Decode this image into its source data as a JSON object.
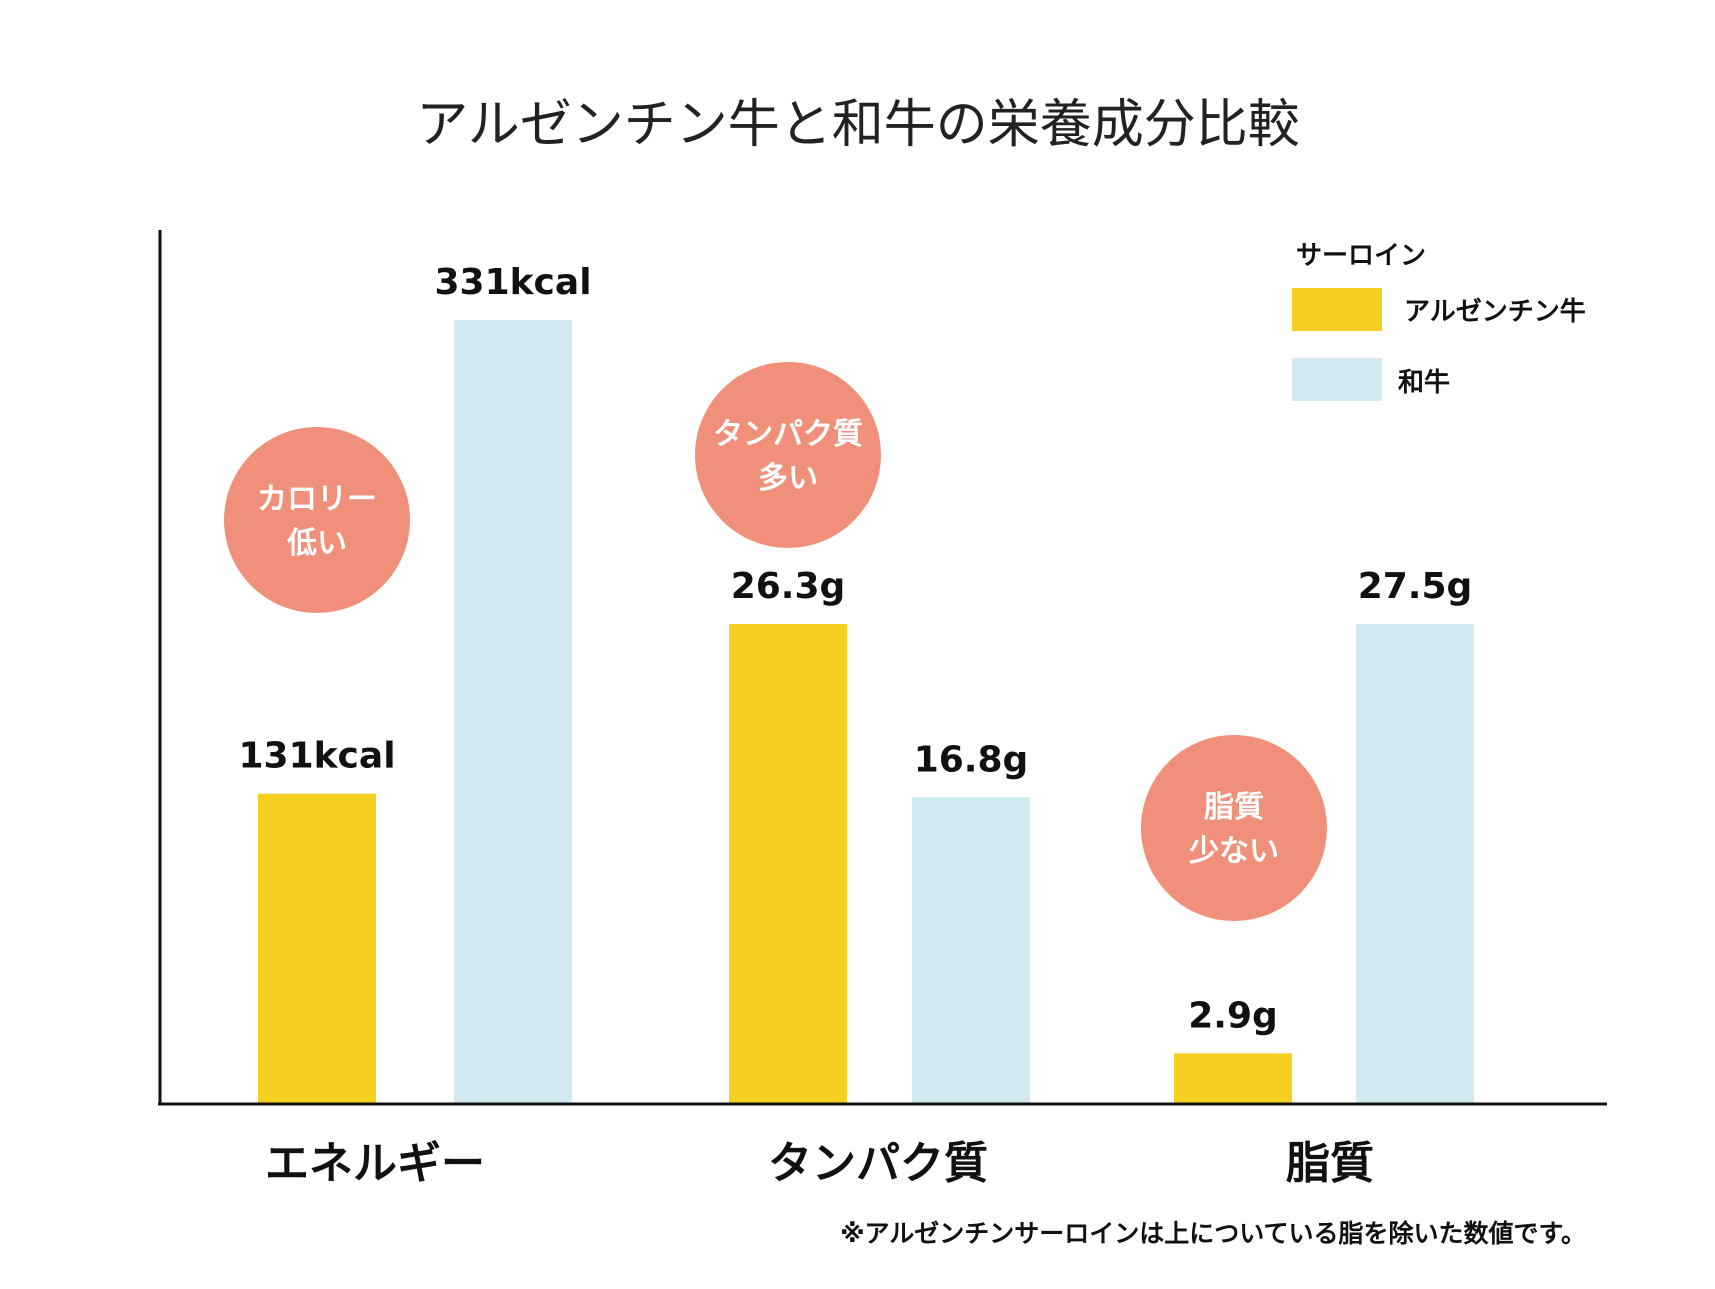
{
  "chart_data": {
    "type": "bar",
    "title": "アルゼンチン牛と和牛の栄養成分比較",
    "categories": [
      "エネルギー",
      "タンパク質",
      "脂質"
    ],
    "legend_title": "サーロイン",
    "legend_position": "top-right",
    "grid": false,
    "series": [
      {
        "name": "アルゼンチン牛",
        "color": "#F5D020",
        "values": [
          131,
          26.3,
          2.9
        ],
        "labels": [
          "131kcal",
          "26.3g",
          "2.9g"
        ]
      },
      {
        "name": "和牛",
        "color": "#D3EBF0",
        "values": [
          331,
          16.8,
          27.5
        ],
        "labels": [
          "331kcal",
          "16.8g",
          "27.5g"
        ]
      }
    ],
    "badges": [
      {
        "lines": [
          "カロリー",
          "低い"
        ]
      },
      {
        "lines": [
          "タンパク質",
          "多い"
        ]
      },
      {
        "lines": [
          "脂質",
          "少ない"
        ]
      }
    ],
    "badge_color": "#F0907A",
    "note": "※アルゼンチンサーロインは上についている脂を除いた数値です。"
  }
}
